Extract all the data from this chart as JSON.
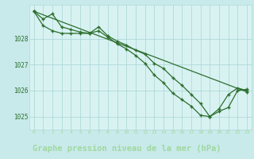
{
  "background_color": "#c8eaea",
  "plot_bg": "#d8f2f2",
  "grid_color": "#b0d8d8",
  "line_color": "#2d6e2d",
  "footer_bg": "#2d6e2d",
  "footer_text_color": "#a0d8a0",
  "title": "Graphe pression niveau de la mer (hPa)",
  "title_fontsize": 7.5,
  "xlim": [
    -0.5,
    23.5
  ],
  "ylim": [
    1024.5,
    1029.3
  ],
  "yticks": [
    1025,
    1026,
    1027,
    1028
  ],
  "xticks": [
    0,
    1,
    2,
    3,
    4,
    5,
    6,
    7,
    8,
    9,
    10,
    11,
    12,
    13,
    14,
    15,
    16,
    17,
    18,
    19,
    20,
    21,
    22,
    23
  ],
  "line1_x": [
    0,
    1,
    2,
    3,
    4,
    5,
    6,
    7,
    8,
    9,
    10,
    11,
    12,
    13,
    14,
    15,
    16,
    17,
    18,
    19,
    20,
    21,
    22,
    23
  ],
  "line1_y": [
    1029.05,
    1028.75,
    1028.95,
    1028.45,
    1028.35,
    1028.25,
    1028.2,
    1028.45,
    1028.1,
    1027.9,
    1027.75,
    1027.55,
    1027.4,
    1027.05,
    1026.85,
    1026.5,
    1026.2,
    1025.85,
    1025.5,
    1025.0,
    1025.3,
    1025.85,
    1026.1,
    1026.0
  ],
  "line2_x": [
    0,
    1,
    2,
    3,
    4,
    5,
    6,
    7,
    8,
    9,
    10,
    11,
    12,
    13,
    14,
    15,
    16,
    17,
    18,
    19,
    20,
    21,
    22,
    23
  ],
  "line2_y": [
    1029.05,
    1028.5,
    1028.3,
    1028.2,
    1028.2,
    1028.2,
    1028.2,
    1028.3,
    1028.05,
    1027.8,
    1027.6,
    1027.35,
    1027.05,
    1026.6,
    1026.3,
    1025.9,
    1025.65,
    1025.4,
    1025.05,
    1025.0,
    1025.2,
    1025.35,
    1026.0,
    1026.05
  ],
  "line3_x": [
    0,
    23
  ],
  "line3_y": [
    1029.05,
    1025.95
  ]
}
